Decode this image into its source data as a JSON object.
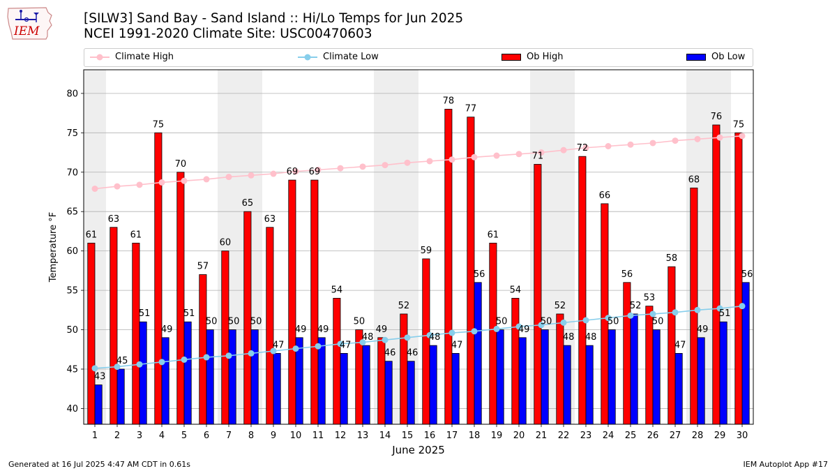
{
  "header": {
    "title": "[SILW3] Sand Bay - Sand Island :: Hi/Lo Temps for Jun 2025",
    "subtitle": "NCEI 1991-2020 Climate Site: USC00470603"
  },
  "logo": {
    "text": "IEM",
    "icon": "iowa-state-outline-logo",
    "color": "#cc0000"
  },
  "legend": {
    "climate_high": "Climate High",
    "climate_low": "Climate Low",
    "ob_high": "Ob High",
    "ob_low": "Ob Low"
  },
  "footer": {
    "generated": "Generated at 16 Jul 2025 4:47 AM CDT in 0.61s",
    "app": "IEM Autoplot App #17"
  },
  "colors": {
    "ob_high": "#ff0000",
    "ob_low": "#0000ff",
    "climate_high": "#ffc0cb",
    "climate_low": "#87ceeb",
    "weekend_band": "#eeeeee",
    "grid": "#b0b0b0"
  },
  "chart_data": {
    "type": "bar",
    "xlabel": "June 2025",
    "ylabel": "Temperature °F",
    "ylim": [
      38,
      83
    ],
    "yticks": [
      40,
      45,
      50,
      55,
      60,
      65,
      70,
      75,
      80
    ],
    "grid": "horizontal",
    "legend_position": "top",
    "categories": [
      "1",
      "2",
      "3",
      "4",
      "5",
      "6",
      "7",
      "8",
      "9",
      "10",
      "11",
      "12",
      "13",
      "14",
      "15",
      "16",
      "17",
      "18",
      "19",
      "20",
      "21",
      "22",
      "23",
      "24",
      "25",
      "26",
      "27",
      "28",
      "29",
      "30"
    ],
    "shaded_days": [
      "1",
      "7",
      "8",
      "14",
      "15",
      "21",
      "22",
      "28",
      "29"
    ],
    "series": [
      {
        "name": "Ob High",
        "kind": "bar",
        "values": [
          61,
          63,
          61,
          75,
          70,
          57,
          60,
          65,
          63,
          69,
          69,
          54,
          50,
          49,
          52,
          59,
          78,
          77,
          61,
          54,
          71,
          52,
          72,
          66,
          56,
          53,
          58,
          68,
          76,
          75
        ]
      },
      {
        "name": "Ob Low",
        "kind": "bar",
        "values": [
          43,
          45,
          51,
          49,
          51,
          50,
          50,
          50,
          47,
          49,
          49,
          47,
          48,
          46,
          46,
          48,
          47,
          56,
          50,
          49,
          50,
          48,
          48,
          50,
          52,
          50,
          47,
          49,
          51,
          56
        ]
      },
      {
        "name": "Climate High",
        "kind": "line",
        "values": [
          67.9,
          68.2,
          68.4,
          68.7,
          68.9,
          69.1,
          69.4,
          69.6,
          69.8,
          70.1,
          70.3,
          70.5,
          70.7,
          70.9,
          71.2,
          71.4,
          71.6,
          71.9,
          72.1,
          72.3,
          72.5,
          72.8,
          73.1,
          73.3,
          73.5,
          73.7,
          74.0,
          74.2,
          74.4,
          74.6
        ]
      },
      {
        "name": "Climate Low",
        "kind": "line",
        "values": [
          45.1,
          45.3,
          45.6,
          45.9,
          46.2,
          46.5,
          46.7,
          47.0,
          47.3,
          47.6,
          47.9,
          48.2,
          48.4,
          48.7,
          49.0,
          49.3,
          49.6,
          49.8,
          50.1,
          50.4,
          50.6,
          50.9,
          51.2,
          51.5,
          51.8,
          52.0,
          52.2,
          52.5,
          52.7,
          53.0
        ]
      }
    ]
  }
}
